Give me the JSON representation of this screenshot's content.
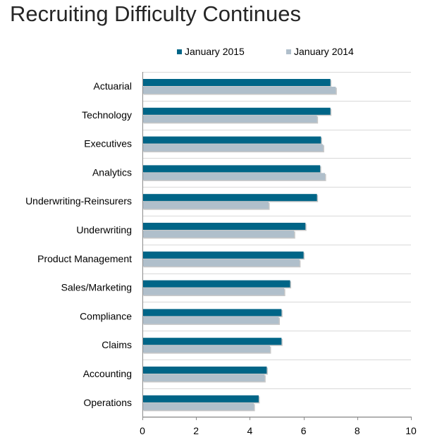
{
  "chart_data": {
    "type": "bar",
    "orientation": "horizontal",
    "title": "Recruiting Difficulty Continues",
    "categories": [
      "Actuarial",
      "Technology",
      "Executives",
      "Analytics",
      "Underwriting-Reinsurers",
      "Underwriting",
      "Product Management",
      "Sales/Marketing",
      "Compliance",
      "Claims",
      "Accounting",
      "Operations"
    ],
    "series": [
      {
        "name": "January 2015",
        "color": "#006587",
        "values": [
          7.0,
          7.0,
          6.65,
          6.62,
          6.5,
          6.07,
          6.0,
          5.5,
          5.18,
          5.18,
          4.63,
          4.33
        ]
      },
      {
        "name": "January 2014",
        "color": "#B0BFCB",
        "values": [
          7.2,
          6.5,
          6.73,
          6.8,
          4.7,
          5.65,
          5.85,
          5.28,
          5.08,
          4.75,
          4.55,
          4.15
        ]
      }
    ],
    "xlim": [
      0,
      10
    ],
    "xticks": [
      0,
      2,
      4,
      6,
      8,
      10
    ],
    "xlabel": "",
    "ylabel": "",
    "grid": true,
    "legend_position": "top-center"
  }
}
